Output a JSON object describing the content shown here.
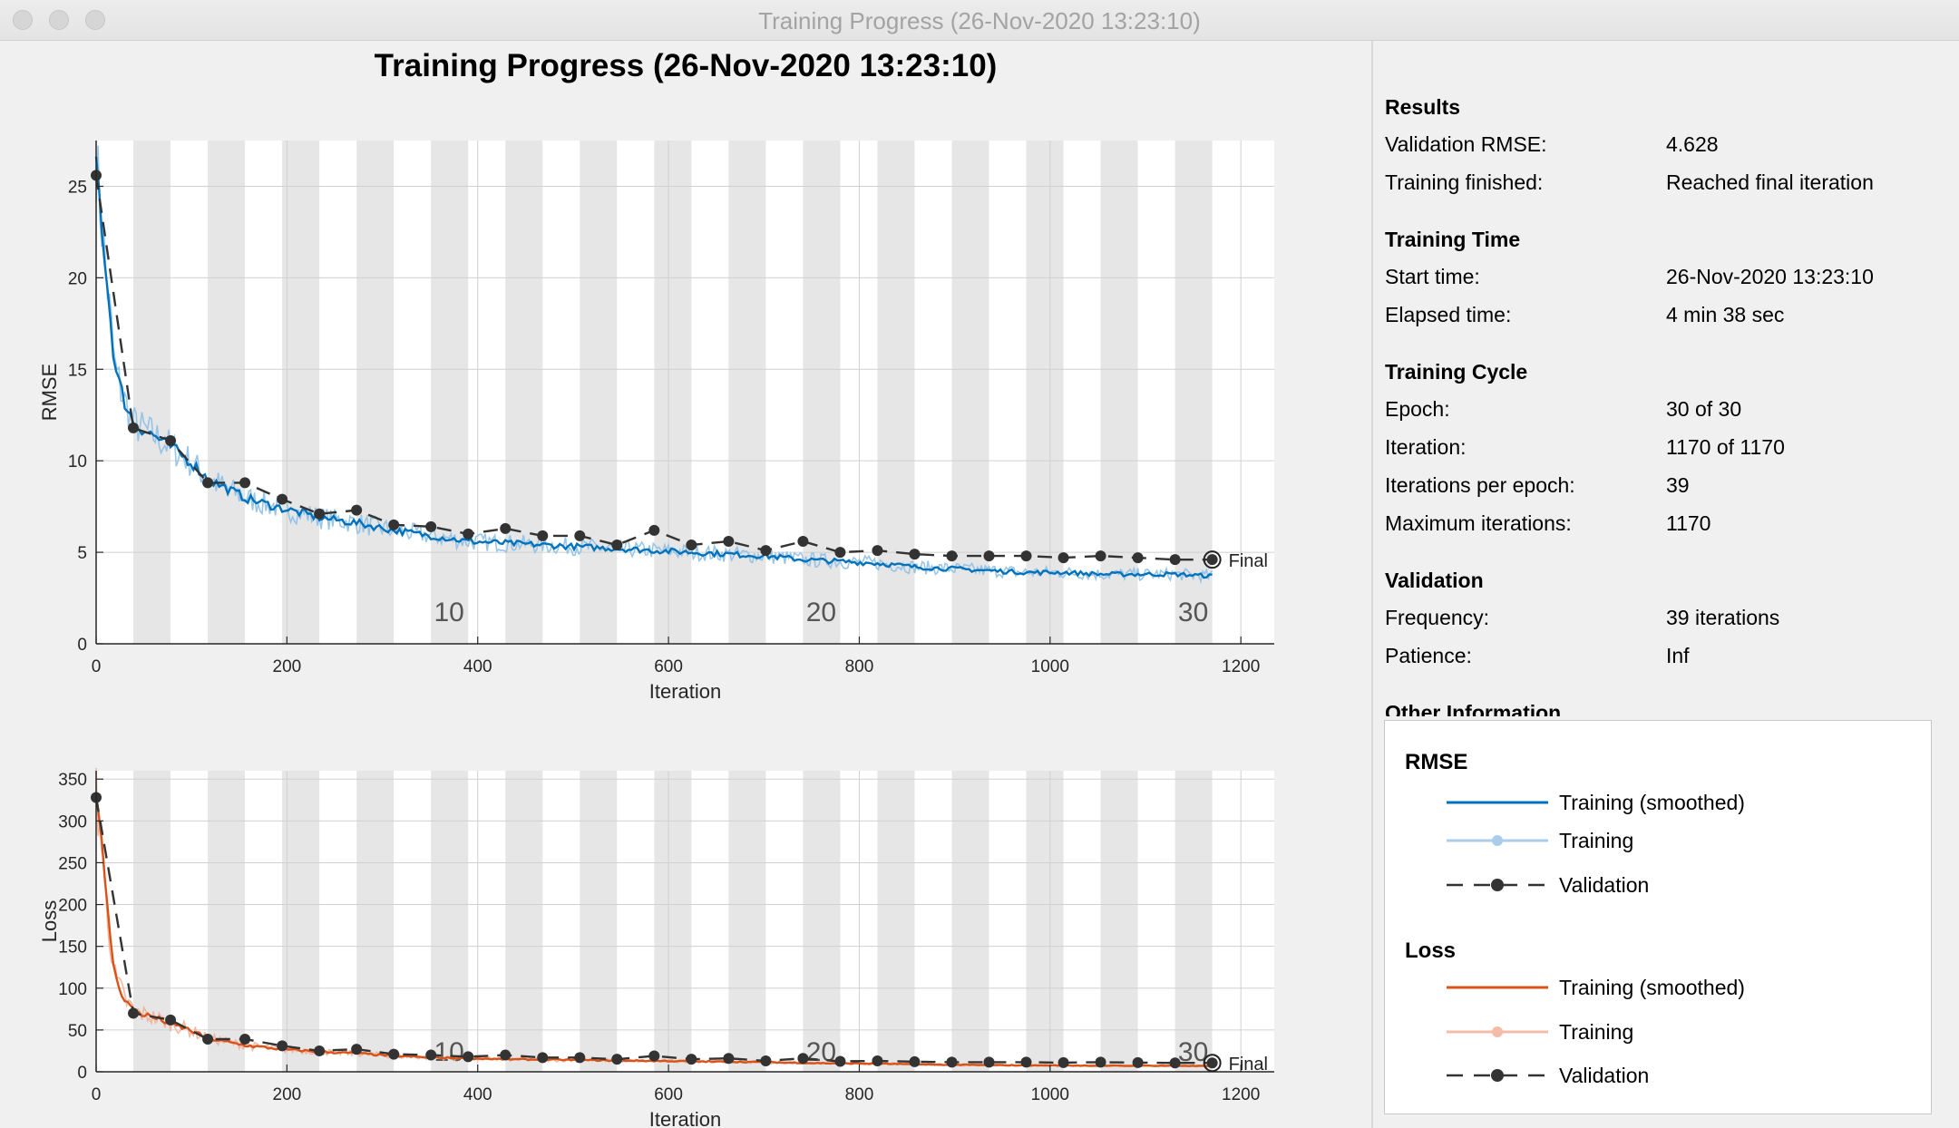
{
  "window": {
    "title": "Training Progress (26-Nov-2020 13:23:10)"
  },
  "figure": {
    "title": "Training Progress (26-Nov-2020 13:23:10)"
  },
  "colors": {
    "rmse_smoothed": "#0072bd",
    "rmse_training": "#8ec0e6",
    "loss_smoothed": "#d95319",
    "loss_training": "#f2b09a",
    "validation": "#333333",
    "epoch_band": "#e6e6e6"
  },
  "chart_data": [
    {
      "type": "line",
      "xlabel": "Iteration",
      "ylabel": "RMSE",
      "xlim": [
        0,
        1235
      ],
      "ylim": [
        0,
        27.5
      ],
      "xticks": [
        0,
        200,
        400,
        600,
        800,
        1000,
        1200
      ],
      "yticks": [
        0,
        5,
        10,
        15,
        20,
        25
      ],
      "epoch_labels": [
        {
          "label": "10",
          "iteration": 370
        },
        {
          "label": "20",
          "iteration": 760
        },
        {
          "label": "30",
          "iteration": 1150
        }
      ],
      "final_label": "Final",
      "grid": true,
      "series": [
        {
          "name": "Validation",
          "x": [
            0,
            39,
            78,
            117,
            156,
            195,
            234,
            273,
            312,
            351,
            390,
            429,
            468,
            507,
            546,
            585,
            624,
            663,
            702,
            741,
            780,
            819,
            858,
            897,
            936,
            975,
            1014,
            1053,
            1092,
            1131,
            1170
          ],
          "values": [
            25.6,
            11.8,
            11.1,
            8.8,
            8.8,
            7.9,
            7.1,
            7.3,
            6.5,
            6.4,
            6.0,
            6.3,
            5.9,
            5.9,
            5.4,
            6.2,
            5.4,
            5.6,
            5.1,
            5.6,
            5.0,
            5.1,
            4.9,
            4.8,
            4.8,
            4.8,
            4.7,
            4.8,
            4.7,
            4.6,
            4.6
          ]
        },
        {
          "name": "Training (smoothed)",
          "x": [
            0,
            10,
            20,
            30,
            40,
            60,
            80,
            100,
            117,
            140,
            160,
            195,
            234,
            273,
            312,
            351,
            390,
            429,
            468,
            507,
            546,
            585,
            624,
            663,
            702,
            741,
            780,
            819,
            858,
            897,
            936,
            975,
            1014,
            1053,
            1092,
            1131,
            1170
          ],
          "values": [
            26.5,
            20.5,
            15.0,
            13.2,
            12.0,
            11.4,
            10.7,
            9.9,
            9.0,
            8.4,
            7.9,
            7.4,
            6.9,
            6.6,
            6.2,
            5.9,
            5.6,
            5.5,
            5.4,
            5.3,
            5.2,
            5.1,
            5.0,
            4.9,
            4.8,
            4.6,
            4.5,
            4.4,
            4.2,
            4.1,
            4.0,
            3.9,
            3.9,
            3.8,
            3.8,
            3.8,
            3.7
          ]
        },
        {
          "name": "Training",
          "x": [
            0,
            10,
            20,
            30,
            40,
            60,
            80,
            100,
            117,
            140,
            160,
            195,
            234,
            273,
            312,
            351,
            390,
            429,
            468,
            507,
            546,
            585,
            624,
            663,
            702,
            741,
            780,
            819,
            858,
            897,
            936,
            975,
            1014,
            1053,
            1092,
            1131,
            1170
          ],
          "values": [
            26.5,
            20.5,
            15.0,
            13.2,
            12.0,
            11.4,
            10.7,
            9.9,
            9.0,
            8.4,
            7.9,
            7.4,
            6.9,
            6.6,
            6.2,
            5.9,
            5.6,
            5.5,
            5.4,
            5.3,
            5.2,
            5.1,
            5.0,
            4.9,
            4.8,
            4.6,
            4.5,
            4.4,
            4.2,
            4.1,
            4.0,
            3.9,
            3.9,
            3.8,
            3.8,
            3.8,
            3.7
          ]
        }
      ]
    },
    {
      "type": "line",
      "xlabel": "Iteration",
      "ylabel": "Loss",
      "xlim": [
        0,
        1235
      ],
      "ylim": [
        0,
        360
      ],
      "xticks": [
        0,
        200,
        400,
        600,
        800,
        1000,
        1200
      ],
      "yticks": [
        0,
        50,
        100,
        150,
        200,
        250,
        300,
        350
      ],
      "epoch_labels": [
        {
          "label": "10",
          "iteration": 370
        },
        {
          "label": "20",
          "iteration": 760
        },
        {
          "label": "30",
          "iteration": 1150
        }
      ],
      "final_label": "Final",
      "grid": true,
      "series": [
        {
          "name": "Validation",
          "x": [
            0,
            39,
            78,
            117,
            156,
            195,
            234,
            273,
            312,
            351,
            390,
            429,
            468,
            507,
            546,
            585,
            624,
            663,
            702,
            741,
            780,
            819,
            858,
            897,
            936,
            975,
            1014,
            1053,
            1092,
            1131,
            1170
          ],
          "values": [
            328,
            70,
            62,
            39,
            39,
            31,
            25,
            27,
            21,
            20,
            18,
            20,
            17,
            17,
            15,
            19,
            15,
            16,
            13,
            16,
            12.5,
            13,
            12,
            11.5,
            11.5,
            11.5,
            11,
            11.5,
            11,
            10.6,
            10.6
          ]
        },
        {
          "name": "Training (smoothed)",
          "x": [
            0,
            10,
            20,
            30,
            40,
            60,
            80,
            100,
            117,
            140,
            160,
            195,
            234,
            273,
            312,
            351,
            390,
            429,
            468,
            507,
            546,
            585,
            624,
            663,
            702,
            741,
            780,
            819,
            858,
            897,
            936,
            975,
            1014,
            1053,
            1092,
            1131,
            1170
          ],
          "values": [
            350,
            210,
            112,
            87,
            72,
            65,
            57,
            49,
            40,
            35,
            31,
            27,
            24,
            22,
            19,
            17,
            16,
            15,
            14.5,
            14,
            13.5,
            13,
            12.5,
            12,
            11.5,
            10.6,
            10,
            9.7,
            8.8,
            8.4,
            8,
            7.6,
            7.6,
            7.2,
            7.2,
            7.2,
            6.8
          ]
        },
        {
          "name": "Training",
          "x": [
            0,
            10,
            20,
            30,
            40,
            60,
            80,
            100,
            117,
            140,
            160,
            195,
            234,
            273,
            312,
            351,
            390,
            429,
            468,
            507,
            546,
            585,
            624,
            663,
            702,
            741,
            780,
            819,
            858,
            897,
            936,
            975,
            1014,
            1053,
            1092,
            1131,
            1170
          ],
          "values": [
            350,
            210,
            112,
            87,
            72,
            65,
            57,
            49,
            40,
            35,
            31,
            27,
            24,
            22,
            19,
            17,
            16,
            15,
            14.5,
            14,
            13.5,
            13,
            12.5,
            12,
            11.5,
            10.6,
            10,
            9.7,
            8.8,
            8.4,
            8,
            7.6,
            7.6,
            7.2,
            7.2,
            7.2,
            6.8
          ]
        }
      ]
    }
  ],
  "panel": {
    "results": {
      "heading": "Results",
      "rows": [
        {
          "label": "Validation RMSE:",
          "value": "4.628"
        },
        {
          "label": "Training finished:",
          "value": "Reached final iteration"
        }
      ]
    },
    "time": {
      "heading": "Training Time",
      "rows": [
        {
          "label": "Start time:",
          "value": "26-Nov-2020 13:23:10"
        },
        {
          "label": "Elapsed time:",
          "value": "4 min 38 sec"
        }
      ]
    },
    "cycle": {
      "heading": "Training Cycle",
      "rows": [
        {
          "label": "Epoch:",
          "value": "30 of 30"
        },
        {
          "label": "Iteration:",
          "value": "1170 of 1170"
        },
        {
          "label": "Iterations per epoch:",
          "value": "39"
        },
        {
          "label": "Maximum iterations:",
          "value": "1170"
        }
      ]
    },
    "validation": {
      "heading": "Validation",
      "rows": [
        {
          "label": "Frequency:",
          "value": "39 iterations"
        },
        {
          "label": "Patience:",
          "value": "Inf"
        }
      ]
    },
    "other": {
      "heading": "Other Information"
    }
  },
  "legend": {
    "rmse": {
      "heading": "RMSE",
      "items": [
        "Training (smoothed)",
        "Training",
        "Validation"
      ]
    },
    "loss": {
      "heading": "Loss",
      "items": [
        "Training (smoothed)",
        "Training",
        "Validation"
      ]
    }
  }
}
